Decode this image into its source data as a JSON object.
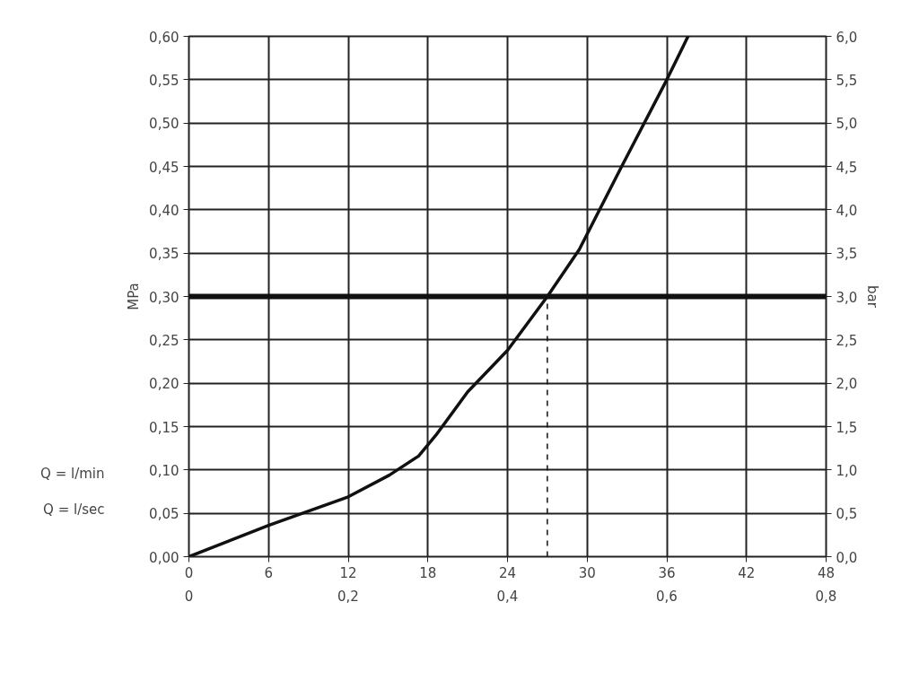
{
  "chart_data": {
    "type": "line",
    "ylabel": "MPa",
    "y2label": "bar",
    "xlabel": "Q = l/min",
    "x2label": "Q = l/sec",
    "x": [
      0,
      6,
      12,
      15.1,
      17.3,
      18.6,
      21,
      24,
      27,
      29.4,
      32.6,
      36,
      37.6
    ],
    "series": [
      {
        "color": "#111111",
        "values": [
          0,
          0.036,
          0.069,
          0.094,
          0.116,
          0.14,
          0.19,
          0.238,
          0.3,
          0.354,
          0.45,
          0.55,
          0.6
        ]
      }
    ],
    "xlim": [
      0,
      48
    ],
    "xticks": [
      0,
      6,
      12,
      18,
      24,
      30,
      36,
      42,
      48
    ],
    "x2lim": [
      0,
      0.8
    ],
    "x2ticks": [
      0,
      {
        "value": 0.2,
        "label": "0,2"
      },
      {
        "value": 0.4,
        "label": "0,4"
      },
      {
        "value": 0.6,
        "label": "0,6"
      },
      {
        "value": 0.8,
        "label": "0,8"
      }
    ],
    "ylim": [
      0,
      0.6
    ],
    "yticks": [
      {
        "value": 0,
        "label": "0,00"
      },
      {
        "value": 0.05,
        "label": "0,05"
      },
      {
        "value": 0.1,
        "label": "0,10"
      },
      {
        "value": 0.15,
        "label": "0,15"
      },
      {
        "value": 0.2,
        "label": "0,20"
      },
      {
        "value": 0.25,
        "label": "0,25"
      },
      {
        "value": 0.3,
        "label": "0,30"
      },
      {
        "value": 0.35,
        "label": "0,35"
      },
      {
        "value": 0.4,
        "label": "0,40"
      },
      {
        "value": 0.45,
        "label": "0,45"
      },
      {
        "value": 0.5,
        "label": "0,50"
      },
      {
        "value": 0.55,
        "label": "0,55"
      },
      {
        "value": 0.6,
        "label": "0,60"
      }
    ],
    "y2lim": [
      0,
      6
    ],
    "y2ticks": [
      {
        "value": 0,
        "label": "0,0"
      },
      {
        "value": 0.5,
        "label": "0,5"
      },
      {
        "value": 1,
        "label": "1,0"
      },
      {
        "value": 1.5,
        "label": "1,5"
      },
      {
        "value": 2,
        "label": "2,0"
      },
      {
        "value": 2.5,
        "label": "2,5"
      },
      {
        "value": 3,
        "label": "3,0"
      },
      {
        "value": 3.5,
        "label": "3,5"
      },
      {
        "value": 4,
        "label": "4,0"
      },
      {
        "value": 4.5,
        "label": "4,5"
      },
      {
        "value": 5,
        "label": "5,0"
      },
      {
        "value": 5.5,
        "label": "5,5"
      },
      {
        "value": 6,
        "label": "6,0"
      }
    ],
    "ref_lines": [
      {
        "axis": "y",
        "value": 0.3,
        "color": "#111111",
        "line_style": "solid"
      },
      {
        "axis": "x",
        "value": 27,
        "color": "#111111",
        "line_style": "dashed"
      }
    ],
    "grid": true,
    "marker": "none",
    "line_style": "solid"
  }
}
